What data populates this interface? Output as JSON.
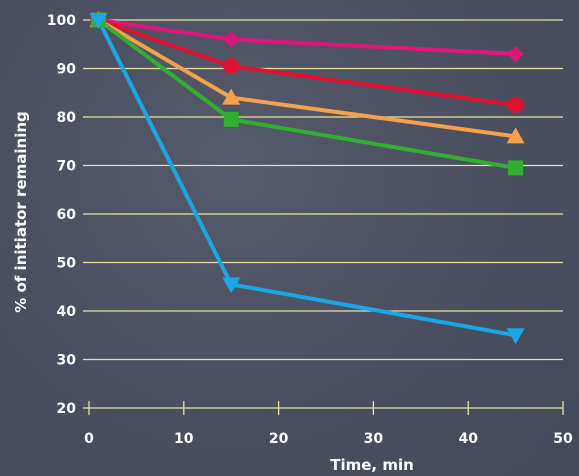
{
  "chart_data": {
    "type": "line",
    "title": "",
    "xlabel": "Time, min",
    "ylabel": "% of initiator remaining",
    "xlim": [
      0,
      50
    ],
    "ylim": [
      20,
      100
    ],
    "x_ticks": [
      0,
      10,
      20,
      30,
      40,
      50
    ],
    "y_ticks": [
      20,
      30,
      40,
      50,
      60,
      70,
      80,
      90,
      100
    ],
    "grid": "horizontal",
    "colors": {
      "background": "#4a4f60",
      "grid": "#e8e2a0",
      "text": "#ffffff"
    },
    "series": [
      {
        "color": "#e0157a",
        "marker": "diamond",
        "x": [
          1,
          15,
          45
        ],
        "y": [
          100,
          96,
          93
        ]
      },
      {
        "color": "#e0102e",
        "marker": "circle",
        "x": [
          1,
          15,
          45
        ],
        "y": [
          100,
          90.5,
          82.5
        ]
      },
      {
        "color": "#f5a04a",
        "marker": "triangle-up",
        "x": [
          1,
          15,
          45
        ],
        "y": [
          100,
          84,
          76
        ]
      },
      {
        "color": "#2fb02f",
        "marker": "square",
        "x": [
          1,
          15,
          45
        ],
        "y": [
          100,
          79.5,
          69.5
        ]
      },
      {
        "color": "#1aa7e8",
        "marker": "triangle-down",
        "x": [
          1,
          15,
          45
        ],
        "y": [
          100,
          45.5,
          35
        ]
      }
    ]
  }
}
